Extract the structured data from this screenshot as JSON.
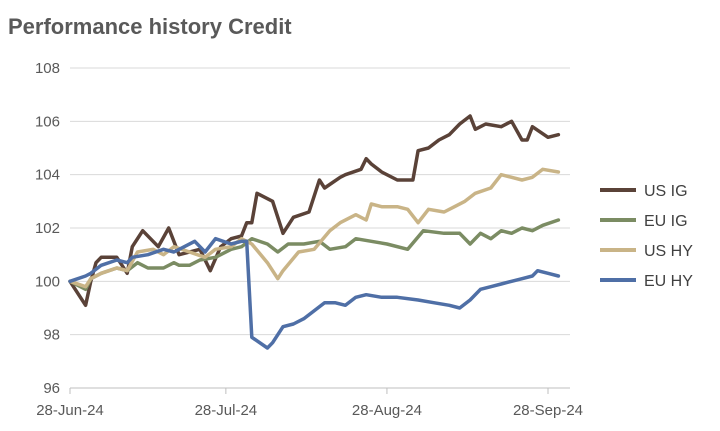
{
  "chart_data": {
    "type": "line",
    "title": "Performance history Credit",
    "xlabel": "",
    "ylabel": "",
    "ylim": [
      96,
      108
    ],
    "yticks": [
      "96",
      "98",
      "100",
      "102",
      "104",
      "106",
      "108"
    ],
    "xrange": [
      "2024-06-28",
      "2024-10-01"
    ],
    "xticks": [
      {
        "date": "2024-06-28",
        "label": "28-Jun-24"
      },
      {
        "date": "2024-07-28",
        "label": "28-Jul-24"
      },
      {
        "date": "2024-08-28",
        "label": "28-Aug-24"
      },
      {
        "date": "2024-09-28",
        "label": "28-Sep-24"
      }
    ],
    "grid": true,
    "legend_position": "right",
    "series": [
      {
        "name": "US IG",
        "color": "#5a4238",
        "points": [
          [
            "2024-06-28",
            100.0
          ],
          [
            "2024-07-01",
            99.1
          ],
          [
            "2024-07-02",
            100.0
          ],
          [
            "2024-07-03",
            100.7
          ],
          [
            "2024-07-04",
            100.9
          ],
          [
            "2024-07-07",
            100.9
          ],
          [
            "2024-07-09",
            100.3
          ],
          [
            "2024-07-10",
            101.3
          ],
          [
            "2024-07-12",
            101.9
          ],
          [
            "2024-07-15",
            101.3
          ],
          [
            "2024-07-17",
            102.0
          ],
          [
            "2024-07-19",
            101.0
          ],
          [
            "2024-07-23",
            101.2
          ],
          [
            "2024-07-25",
            100.4
          ],
          [
            "2024-07-27",
            101.3
          ],
          [
            "2024-07-29",
            101.6
          ],
          [
            "2024-07-31",
            101.7
          ],
          [
            "2024-08-01",
            102.2
          ],
          [
            "2024-08-02",
            102.2
          ],
          [
            "2024-08-03",
            103.3
          ],
          [
            "2024-08-06",
            103.0
          ],
          [
            "2024-08-08",
            101.8
          ],
          [
            "2024-08-10",
            102.4
          ],
          [
            "2024-08-13",
            102.6
          ],
          [
            "2024-08-15",
            103.8
          ],
          [
            "2024-08-16",
            103.5
          ],
          [
            "2024-08-19",
            103.9
          ],
          [
            "2024-08-20",
            104.0
          ],
          [
            "2024-08-23",
            104.2
          ],
          [
            "2024-08-24",
            104.6
          ],
          [
            "2024-08-25",
            104.4
          ],
          [
            "2024-08-27",
            104.1
          ],
          [
            "2024-08-30",
            103.8
          ],
          [
            "2024-09-02",
            103.8
          ],
          [
            "2024-09-03",
            104.9
          ],
          [
            "2024-09-05",
            105.0
          ],
          [
            "2024-09-07",
            105.3
          ],
          [
            "2024-09-09",
            105.5
          ],
          [
            "2024-09-11",
            105.9
          ],
          [
            "2024-09-13",
            106.2
          ],
          [
            "2024-09-14",
            105.7
          ],
          [
            "2024-09-16",
            105.9
          ],
          [
            "2024-09-19",
            105.8
          ],
          [
            "2024-09-21",
            106.0
          ],
          [
            "2024-09-23",
            105.3
          ],
          [
            "2024-09-24",
            105.3
          ],
          [
            "2024-09-25",
            105.8
          ],
          [
            "2024-09-28",
            105.4
          ],
          [
            "2024-09-30",
            105.5
          ]
        ]
      },
      {
        "name": "EU IG",
        "color": "#7b8c63",
        "points": [
          [
            "2024-06-28",
            100.0
          ],
          [
            "2024-07-01",
            99.7
          ],
          [
            "2024-07-02",
            100.1
          ],
          [
            "2024-07-04",
            100.3
          ],
          [
            "2024-07-07",
            100.5
          ],
          [
            "2024-07-09",
            100.4
          ],
          [
            "2024-07-11",
            100.7
          ],
          [
            "2024-07-13",
            100.5
          ],
          [
            "2024-07-16",
            100.5
          ],
          [
            "2024-07-18",
            100.7
          ],
          [
            "2024-07-19",
            100.6
          ],
          [
            "2024-07-21",
            100.6
          ],
          [
            "2024-07-23",
            100.8
          ],
          [
            "2024-07-26",
            100.9
          ],
          [
            "2024-07-29",
            101.2
          ],
          [
            "2024-07-31",
            101.3
          ],
          [
            "2024-08-02",
            101.6
          ],
          [
            "2024-08-05",
            101.4
          ],
          [
            "2024-08-07",
            101.1
          ],
          [
            "2024-08-09",
            101.4
          ],
          [
            "2024-08-12",
            101.4
          ],
          [
            "2024-08-15",
            101.5
          ],
          [
            "2024-08-17",
            101.2
          ],
          [
            "2024-08-20",
            101.3
          ],
          [
            "2024-08-22",
            101.6
          ],
          [
            "2024-08-25",
            101.5
          ],
          [
            "2024-08-28",
            101.4
          ],
          [
            "2024-09-01",
            101.2
          ],
          [
            "2024-09-04",
            101.9
          ],
          [
            "2024-09-08",
            101.8
          ],
          [
            "2024-09-11",
            101.8
          ],
          [
            "2024-09-13",
            101.4
          ],
          [
            "2024-09-15",
            101.8
          ],
          [
            "2024-09-17",
            101.6
          ],
          [
            "2024-09-19",
            101.9
          ],
          [
            "2024-09-21",
            101.8
          ],
          [
            "2024-09-23",
            102.0
          ],
          [
            "2024-09-25",
            101.9
          ],
          [
            "2024-09-27",
            102.1
          ],
          [
            "2024-09-30",
            102.3
          ]
        ]
      },
      {
        "name": "US HY",
        "color": "#c9b487",
        "points": [
          [
            "2024-06-28",
            100.0
          ],
          [
            "2024-07-01",
            99.8
          ],
          [
            "2024-07-02",
            100.1
          ],
          [
            "2024-07-04",
            100.3
          ],
          [
            "2024-07-07",
            100.5
          ],
          [
            "2024-07-09",
            100.4
          ],
          [
            "2024-07-11",
            101.1
          ],
          [
            "2024-07-14",
            101.2
          ],
          [
            "2024-07-16",
            101.0
          ],
          [
            "2024-07-18",
            101.3
          ],
          [
            "2024-07-21",
            101.1
          ],
          [
            "2024-07-24",
            100.9
          ],
          [
            "2024-07-26",
            101.2
          ],
          [
            "2024-07-29",
            101.3
          ],
          [
            "2024-07-31",
            101.6
          ],
          [
            "2024-08-02",
            101.4
          ],
          [
            "2024-08-05",
            100.7
          ],
          [
            "2024-08-07",
            100.1
          ],
          [
            "2024-08-08",
            100.4
          ],
          [
            "2024-08-11",
            101.1
          ],
          [
            "2024-08-14",
            101.2
          ],
          [
            "2024-08-17",
            101.9
          ],
          [
            "2024-08-19",
            102.2
          ],
          [
            "2024-08-22",
            102.5
          ],
          [
            "2024-08-24",
            102.3
          ],
          [
            "2024-08-25",
            102.9
          ],
          [
            "2024-08-27",
            102.8
          ],
          [
            "2024-08-30",
            102.8
          ],
          [
            "2024-09-01",
            102.7
          ],
          [
            "2024-09-03",
            102.2
          ],
          [
            "2024-09-05",
            102.7
          ],
          [
            "2024-09-08",
            102.6
          ],
          [
            "2024-09-10",
            102.8
          ],
          [
            "2024-09-12",
            103.0
          ],
          [
            "2024-09-14",
            103.3
          ],
          [
            "2024-09-17",
            103.5
          ],
          [
            "2024-09-19",
            104.0
          ],
          [
            "2024-09-21",
            103.9
          ],
          [
            "2024-09-23",
            103.8
          ],
          [
            "2024-09-25",
            103.9
          ],
          [
            "2024-09-27",
            104.2
          ],
          [
            "2024-09-30",
            104.1
          ]
        ]
      },
      {
        "name": "EU HY",
        "color": "#4f6fa6",
        "points": [
          [
            "2024-06-28",
            100.0
          ],
          [
            "2024-07-01",
            100.2
          ],
          [
            "2024-07-02",
            100.3
          ],
          [
            "2024-07-04",
            100.6
          ],
          [
            "2024-07-07",
            100.8
          ],
          [
            "2024-07-09",
            100.7
          ],
          [
            "2024-07-10",
            100.9
          ],
          [
            "2024-07-13",
            101.0
          ],
          [
            "2024-07-16",
            101.2
          ],
          [
            "2024-07-18",
            101.1
          ],
          [
            "2024-07-20",
            101.3
          ],
          [
            "2024-07-22",
            101.5
          ],
          [
            "2024-07-24",
            101.1
          ],
          [
            "2024-07-26",
            101.6
          ],
          [
            "2024-07-29",
            101.4
          ],
          [
            "2024-07-31",
            101.5
          ],
          [
            "2024-08-01",
            101.5
          ],
          [
            "2024-08-02",
            97.9
          ],
          [
            "2024-08-05",
            97.5
          ],
          [
            "2024-08-06",
            97.7
          ],
          [
            "2024-08-08",
            98.3
          ],
          [
            "2024-08-10",
            98.4
          ],
          [
            "2024-08-12",
            98.6
          ],
          [
            "2024-08-14",
            98.9
          ],
          [
            "2024-08-16",
            99.2
          ],
          [
            "2024-08-18",
            99.2
          ],
          [
            "2024-08-20",
            99.1
          ],
          [
            "2024-08-22",
            99.4
          ],
          [
            "2024-08-24",
            99.5
          ],
          [
            "2024-08-27",
            99.4
          ],
          [
            "2024-08-30",
            99.4
          ],
          [
            "2024-09-03",
            99.3
          ],
          [
            "2024-09-06",
            99.2
          ],
          [
            "2024-09-09",
            99.1
          ],
          [
            "2024-09-11",
            99.0
          ],
          [
            "2024-09-13",
            99.3
          ],
          [
            "2024-09-15",
            99.7
          ],
          [
            "2024-09-17",
            99.8
          ],
          [
            "2024-09-19",
            99.9
          ],
          [
            "2024-09-21",
            100.0
          ],
          [
            "2024-09-23",
            100.1
          ],
          [
            "2024-09-25",
            100.2
          ],
          [
            "2024-09-26",
            100.4
          ],
          [
            "2024-09-28",
            100.3
          ],
          [
            "2024-09-30",
            100.2
          ]
        ]
      }
    ]
  }
}
